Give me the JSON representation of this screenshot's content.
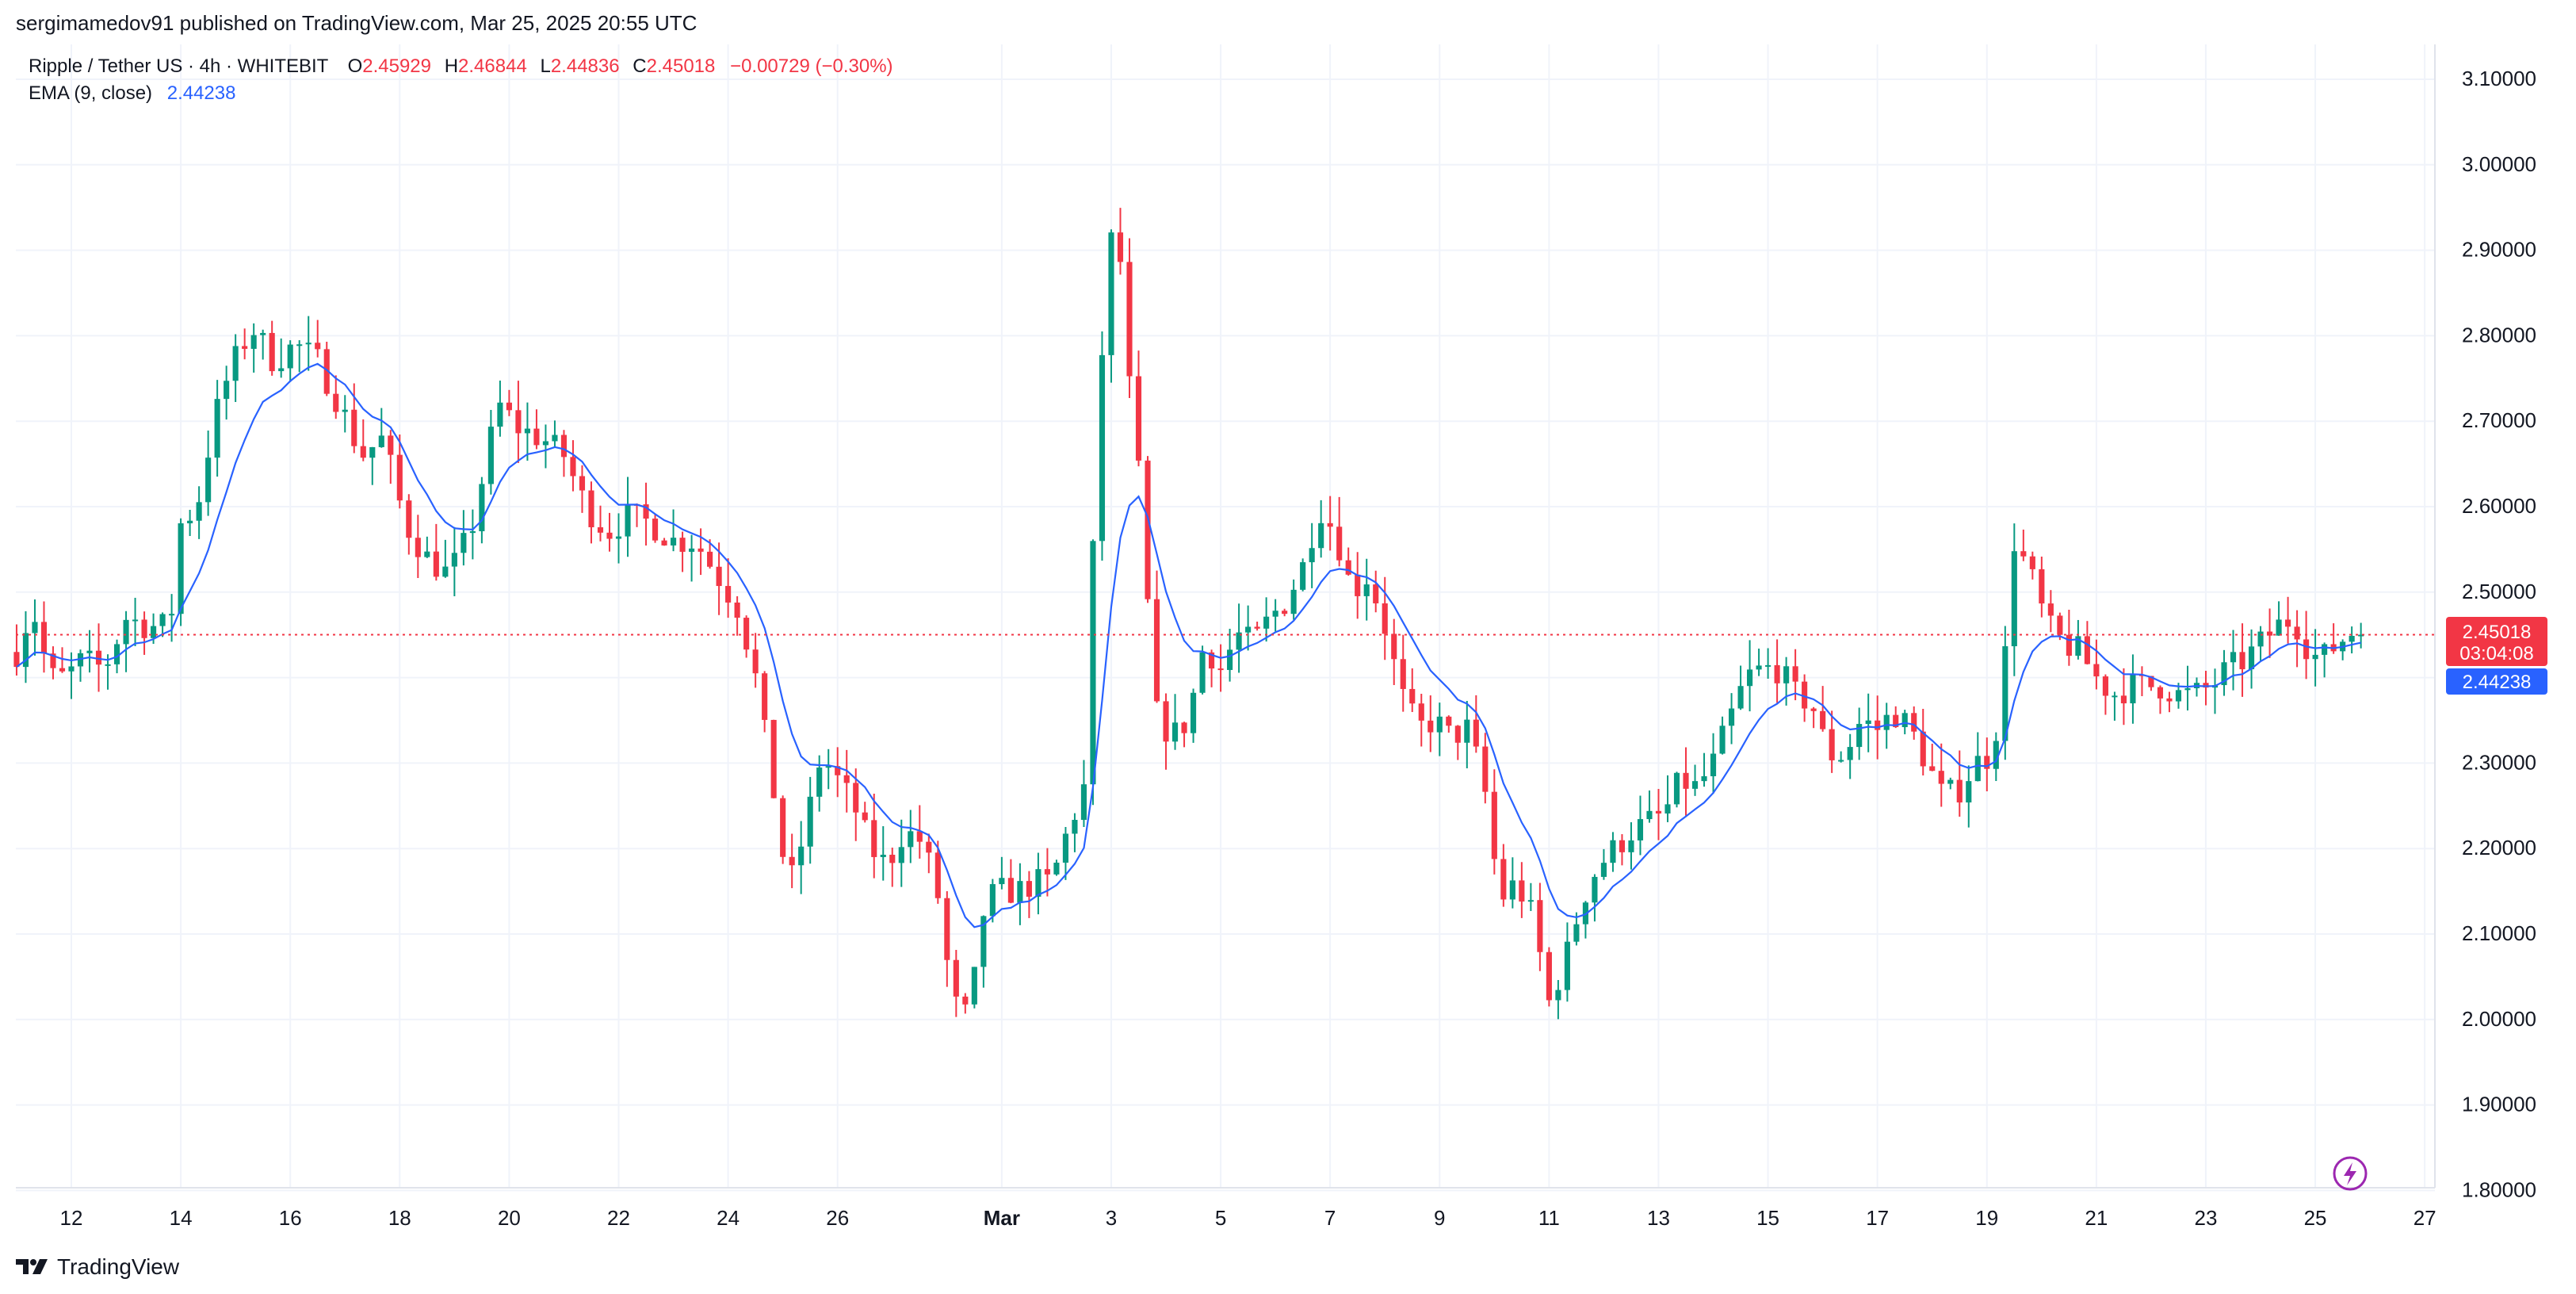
{
  "published_by": "sergimamedov91 published on TradingView.com, Mar 25, 2025 20:55 UTC",
  "legend": {
    "symbol": "Ripple / Tether US · 4h · WHITEBIT",
    "o_label": "O",
    "open": "2.45929",
    "h_label": "H",
    "high": "2.46844",
    "l_label": "L",
    "low": "2.44836",
    "c_label": "C",
    "close": "2.45018",
    "change": "−0.00729 (−0.30%)",
    "ema_label": "EMA (9, close)",
    "ema_value": "2.44238"
  },
  "price_tags": {
    "last_price": "2.45018",
    "countdown": "03:04:08",
    "ema": "2.44238"
  },
  "footer": {
    "brand": "TradingView"
  },
  "colors": {
    "up": "#089981",
    "down": "#f23645",
    "ema": "#2962ff",
    "grid": "#f0f3fa",
    "text": "#131722"
  },
  "icons": [
    "lightning-icon",
    "tradingview-logo-icon"
  ],
  "chart_data": {
    "type": "candlestick",
    "title": "Ripple / Tether US · 4h · WHITEBIT",
    "ylim": [
      1.75,
      3.15
    ],
    "y_ticks": [
      "3.10000",
      "3.00000",
      "2.90000",
      "2.80000",
      "2.70000",
      "2.60000",
      "2.50000",
      "2.40000",
      "2.30000",
      "2.20000",
      "2.10000",
      "2.00000",
      "1.90000",
      "1.80000"
    ],
    "x_ticks": [
      {
        "label": "12",
        "day": 1
      },
      {
        "label": "14",
        "day": 3
      },
      {
        "label": "16",
        "day": 5
      },
      {
        "label": "18",
        "day": 7
      },
      {
        "label": "20",
        "day": 9
      },
      {
        "label": "22",
        "day": 11
      },
      {
        "label": "24",
        "day": 13
      },
      {
        "label": "26",
        "day": 15
      },
      {
        "label": "Mar",
        "day": 18
      },
      {
        "label": "3",
        "day": 20
      },
      {
        "label": "5",
        "day": 22
      },
      {
        "label": "7",
        "day": 24
      },
      {
        "label": "9",
        "day": 26
      },
      {
        "label": "11",
        "day": 28
      },
      {
        "label": "13",
        "day": 30
      },
      {
        "label": "15",
        "day": 32
      },
      {
        "label": "17",
        "day": 34
      },
      {
        "label": "19",
        "day": 36
      },
      {
        "label": "21",
        "day": 38
      },
      {
        "label": "23",
        "day": 40
      },
      {
        "label": "25",
        "day": 42
      },
      {
        "label": "27",
        "day": 44
      }
    ],
    "x_range_days": [
      0,
      45
    ],
    "candle_interval_days": 0.16667,
    "last_price": 2.45018,
    "ema_current": 2.44238,
    "ema_period": 9,
    "close_path": [
      [
        0.0,
        2.43
      ],
      [
        0.15,
        2.46
      ],
      [
        0.3,
        2.48
      ],
      [
        0.6,
        2.4
      ],
      [
        0.9,
        2.4
      ],
      [
        1.2,
        2.42
      ],
      [
        1.6,
        2.41
      ],
      [
        2.0,
        2.47
      ],
      [
        2.4,
        2.46
      ],
      [
        2.8,
        2.46
      ],
      [
        3.0,
        2.58
      ],
      [
        3.3,
        2.6
      ],
      [
        3.6,
        2.7
      ],
      [
        3.9,
        2.76
      ],
      [
        4.3,
        2.81
      ],
      [
        4.7,
        2.77
      ],
      [
        5.1,
        2.79
      ],
      [
        5.5,
        2.77
      ],
      [
        5.9,
        2.72
      ],
      [
        6.3,
        2.66
      ],
      [
        6.7,
        2.68
      ],
      [
        7.1,
        2.58
      ],
      [
        7.5,
        2.54
      ],
      [
        7.9,
        2.52
      ],
      [
        8.3,
        2.57
      ],
      [
        8.8,
        2.72
      ],
      [
        9.2,
        2.69
      ],
      [
        9.6,
        2.68
      ],
      [
        10.0,
        2.66
      ],
      [
        10.4,
        2.6
      ],
      [
        10.8,
        2.57
      ],
      [
        11.2,
        2.59
      ],
      [
        11.6,
        2.58
      ],
      [
        12.0,
        2.56
      ],
      [
        12.4,
        2.56
      ],
      [
        12.8,
        2.52
      ],
      [
        13.2,
        2.48
      ],
      [
        13.5,
        2.4
      ],
      [
        13.8,
        2.28
      ],
      [
        14.1,
        2.15
      ],
      [
        14.4,
        2.22
      ],
      [
        14.7,
        2.31
      ],
      [
        15.0,
        2.28
      ],
      [
        15.3,
        2.25
      ],
      [
        15.6,
        2.2
      ],
      [
        15.9,
        2.18
      ],
      [
        16.2,
        2.22
      ],
      [
        16.5,
        2.21
      ],
      [
        16.8,
        2.16
      ],
      [
        17.1,
        2.02
      ],
      [
        17.4,
        2.0
      ],
      [
        17.7,
        2.14
      ],
      [
        18.0,
        2.15
      ],
      [
        18.3,
        2.15
      ],
      [
        18.6,
        2.16
      ],
      [
        18.9,
        2.16
      ],
      [
        19.2,
        2.22
      ],
      [
        19.5,
        2.27
      ],
      [
        19.7,
        2.6
      ],
      [
        19.9,
        2.87
      ],
      [
        20.1,
        2.95
      ],
      [
        20.3,
        2.76
      ],
      [
        20.5,
        2.64
      ],
      [
        20.8,
        2.36
      ],
      [
        21.1,
        2.33
      ],
      [
        21.4,
        2.35
      ],
      [
        21.7,
        2.44
      ],
      [
        22.0,
        2.41
      ],
      [
        22.3,
        2.45
      ],
      [
        22.6,
        2.44
      ],
      [
        22.9,
        2.47
      ],
      [
        23.2,
        2.49
      ],
      [
        23.5,
        2.53
      ],
      [
        23.8,
        2.6
      ],
      [
        24.1,
        2.57
      ],
      [
        24.4,
        2.5
      ],
      [
        24.7,
        2.52
      ],
      [
        25.0,
        2.46
      ],
      [
        25.3,
        2.38
      ],
      [
        25.6,
        2.34
      ],
      [
        25.9,
        2.35
      ],
      [
        26.2,
        2.33
      ],
      [
        26.5,
        2.34
      ],
      [
        26.8,
        2.28
      ],
      [
        27.1,
        2.14
      ],
      [
        27.4,
        2.16
      ],
      [
        27.7,
        2.12
      ],
      [
        28.0,
        2.02
      ],
      [
        28.3,
        2.07
      ],
      [
        28.6,
        2.14
      ],
      [
        28.9,
        2.18
      ],
      [
        29.2,
        2.2
      ],
      [
        29.5,
        2.22
      ],
      [
        29.8,
        2.23
      ],
      [
        30.1,
        2.24
      ],
      [
        30.4,
        2.28
      ],
      [
        30.7,
        2.27
      ],
      [
        31.0,
        2.3
      ],
      [
        31.3,
        2.35
      ],
      [
        31.6,
        2.4
      ],
      [
        31.9,
        2.41
      ],
      [
        32.2,
        2.41
      ],
      [
        32.5,
        2.38
      ],
      [
        32.8,
        2.37
      ],
      [
        33.1,
        2.31
      ],
      [
        33.4,
        2.31
      ],
      [
        33.7,
        2.35
      ],
      [
        34.0,
        2.34
      ],
      [
        34.3,
        2.36
      ],
      [
        34.6,
        2.34
      ],
      [
        34.9,
        2.3
      ],
      [
        35.2,
        2.26
      ],
      [
        35.5,
        2.27
      ],
      [
        35.8,
        2.3
      ],
      [
        36.1,
        2.31
      ],
      [
        36.3,
        2.4
      ],
      [
        36.5,
        2.56
      ],
      [
        36.8,
        2.52
      ],
      [
        37.1,
        2.46
      ],
      [
        37.4,
        2.44
      ],
      [
        37.7,
        2.43
      ],
      [
        38.0,
        2.4
      ],
      [
        38.3,
        2.38
      ],
      [
        38.6,
        2.39
      ],
      [
        38.9,
        2.39
      ],
      [
        39.2,
        2.39
      ],
      [
        39.5,
        2.38
      ],
      [
        39.8,
        2.38
      ],
      [
        40.1,
        2.39
      ],
      [
        40.4,
        2.41
      ],
      [
        40.7,
        2.42
      ],
      [
        41.0,
        2.44
      ],
      [
        41.3,
        2.46
      ],
      [
        41.6,
        2.47
      ],
      [
        41.9,
        2.43
      ],
      [
        42.1,
        2.42
      ],
      [
        42.4,
        2.44
      ],
      [
        42.7,
        2.455
      ],
      [
        42.9,
        2.45018
      ]
    ]
  }
}
